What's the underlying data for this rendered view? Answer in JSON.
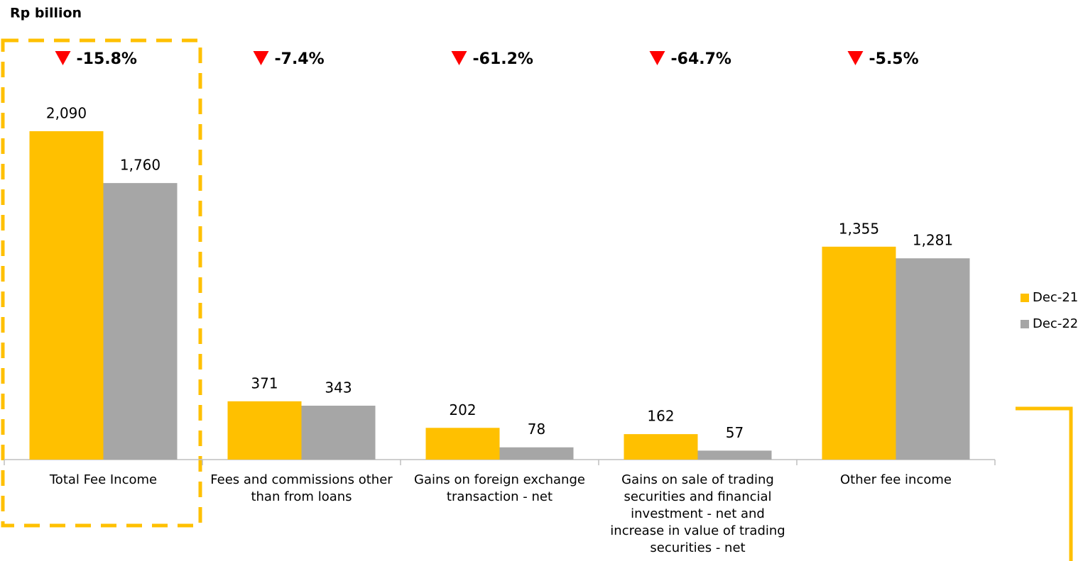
{
  "chart_data": {
    "type": "bar",
    "title": "Rp billion",
    "categories": [
      "Total Fee Income",
      "Fees and commissions other than from loans",
      "Gains on foreign exchange transaction - net",
      "Gains on sale of trading securities and financial investment - net and increase in value of trading securities - net",
      "Other fee income"
    ],
    "series": [
      {
        "name": "Dec-21",
        "color": "#ffc000",
        "values": [
          2090,
          371,
          202,
          162,
          1355
        ],
        "value_labels": [
          "2,090",
          "371",
          "202",
          "162",
          "1,355"
        ]
      },
      {
        "name": "Dec-22",
        "color": "#a6a6a6",
        "values": [
          1760,
          343,
          78,
          57,
          1281
        ],
        "value_labels": [
          "1,760",
          "343",
          "78",
          "57",
          "1,281"
        ]
      }
    ],
    "change_labels": [
      "-15.8%",
      "-7.4%",
      "-61.2%",
      "-64.7%",
      "-5.5%"
    ],
    "legend": "right"
  }
}
